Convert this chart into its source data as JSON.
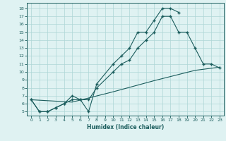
{
  "line1_x": [
    0,
    1,
    2,
    3,
    4,
    5,
    6,
    7,
    8,
    10,
    11,
    12,
    13,
    14,
    15,
    16,
    17,
    18
  ],
  "line1_y": [
    6.5,
    5,
    5,
    5.5,
    6,
    7,
    6.5,
    5,
    8.5,
    11,
    12,
    13,
    15,
    15,
    16.5,
    18,
    18,
    17.5
  ],
  "line2_x": [
    0,
    1,
    2,
    3,
    4,
    5,
    6,
    7,
    8,
    10,
    11,
    12,
    13,
    14,
    15,
    16,
    17,
    18,
    19,
    20,
    21,
    22,
    23
  ],
  "line2_y": [
    6.5,
    5,
    5,
    5.5,
    6,
    6.5,
    6.5,
    6.5,
    8,
    10,
    11,
    11.5,
    13,
    14,
    15,
    17,
    17,
    15,
    15,
    13,
    11,
    11,
    10.5
  ],
  "line3_x": [
    0,
    5,
    10,
    15,
    20,
    23
  ],
  "line3_y": [
    6.5,
    6.2,
    7.5,
    8.9,
    10.2,
    10.6
  ],
  "line_color": "#1a5c5c",
  "bg_color": "#dff2f2",
  "grid_color": "#aed6d6",
  "xlabel": "Humidex (Indice chaleur)",
  "xlim": [
    -0.5,
    23.5
  ],
  "ylim": [
    4.5,
    18.7
  ],
  "xticks": [
    0,
    1,
    2,
    3,
    4,
    5,
    6,
    7,
    8,
    9,
    10,
    11,
    12,
    13,
    14,
    15,
    16,
    17,
    18,
    19,
    20,
    21,
    22,
    23
  ],
  "yticks": [
    5,
    6,
    7,
    8,
    9,
    10,
    11,
    12,
    13,
    14,
    15,
    16,
    17,
    18
  ]
}
